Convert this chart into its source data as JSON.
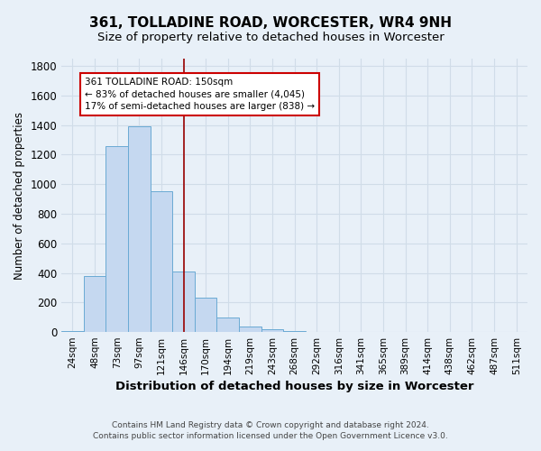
{
  "title1": "361, TOLLADINE ROAD, WORCESTER, WR4 9NH",
  "title2": "Size of property relative to detached houses in Worcester",
  "xlabel": "Distribution of detached houses by size in Worcester",
  "ylabel": "Number of detached properties",
  "footer": "Contains HM Land Registry data © Crown copyright and database right 2024.\nContains public sector information licensed under the Open Government Licence v3.0.",
  "bin_labels": [
    "24sqm",
    "48sqm",
    "73sqm",
    "97sqm",
    "121sqm",
    "146sqm",
    "170sqm",
    "194sqm",
    "219sqm",
    "243sqm",
    "268sqm",
    "292sqm",
    "316sqm",
    "341sqm",
    "365sqm",
    "389sqm",
    "414sqm",
    "438sqm",
    "462sqm",
    "487sqm",
    "511sqm"
  ],
  "bar_heights": [
    5,
    380,
    1260,
    1390,
    950,
    410,
    230,
    100,
    40,
    20,
    5,
    3,
    2,
    1,
    0,
    0,
    0,
    0,
    0,
    0,
    0
  ],
  "bar_color": "#c5d8f0",
  "bar_edge_color": "#6aaad4",
  "background_color": "#e8f0f8",
  "grid_color": "#d0dce8",
  "vline_x": 5.0,
  "vline_color": "#990000",
  "annotation_text": "361 TOLLADINE ROAD: 150sqm\n← 83% of detached houses are smaller (4,045)\n17% of semi-detached houses are larger (838) →",
  "annotation_box_color": "#ffffff",
  "annotation_box_edge": "#cc0000",
  "ylim": [
    0,
    1850
  ],
  "yticks": [
    0,
    200,
    400,
    600,
    800,
    1000,
    1200,
    1400,
    1600,
    1800
  ]
}
